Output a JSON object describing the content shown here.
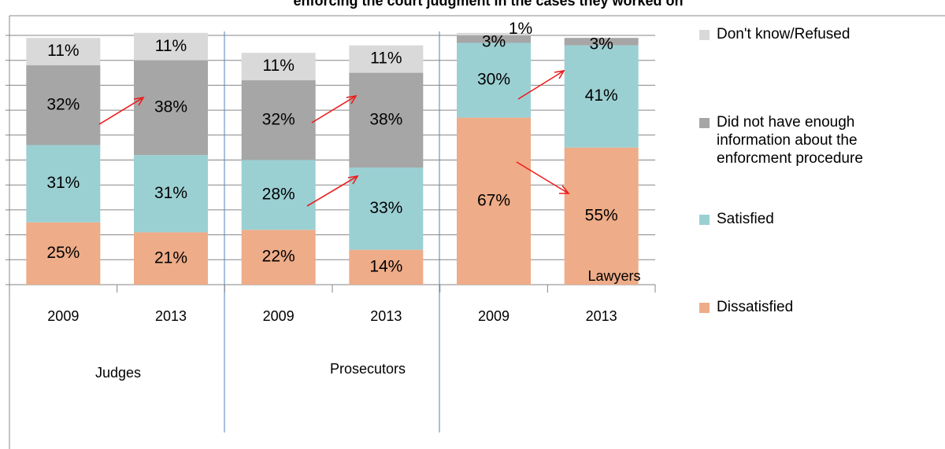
{
  "chart_data": {
    "type": "stacked_bar",
    "title": "enforcing the court judgment in the cases they worked on",
    "categories": [
      "2009",
      "2013",
      "2009",
      "2013",
      "2009",
      "2013"
    ],
    "groups": [
      "Judges",
      "Prosecutors",
      "Lawyers"
    ],
    "series": [
      {
        "name": "Dissatisfied",
        "color": "#eeac88",
        "values": [
          25,
          21,
          22,
          14,
          67,
          55
        ],
        "value_labels": [
          "25%",
          "21%",
          "22%",
          "14%",
          "67%",
          "55%"
        ]
      },
      {
        "name": "Satisfied",
        "color": "#9bd0d3",
        "values": [
          31,
          31,
          28,
          33,
          30,
          41
        ],
        "value_labels": [
          "31%",
          "31%",
          "28%",
          "33%",
          "30%",
          "41%"
        ]
      },
      {
        "name": "Did not have enough information about the enforcment procedure",
        "color": "#a6a6a6",
        "values": [
          32,
          38,
          32,
          38,
          3,
          3
        ],
        "value_labels": [
          "32%",
          "38%",
          "32%",
          "38%",
          "3%",
          "3%"
        ]
      },
      {
        "name": "Don't know/Refused",
        "color": "#d9d9d9",
        "values": [
          11,
          11,
          11,
          11,
          1,
          null
        ],
        "value_labels": [
          "11%",
          "11%",
          "11%",
          "11%",
          "1%",
          null
        ]
      }
    ],
    "ylim": [
      0,
      100
    ],
    "yticks": [
      0,
      10,
      20,
      30,
      40,
      50,
      60,
      70,
      80,
      90,
      100
    ],
    "grid": true
  }
}
